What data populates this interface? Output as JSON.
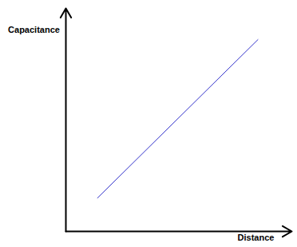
{
  "chart_data": {
    "type": "line",
    "x_label": "Distance",
    "y_label": "Capacitance",
    "x": [
      1.4,
      8.5
    ],
    "values": [
      1.5,
      8.6
    ],
    "color": "#3333cc",
    "xlim": [
      0,
      10
    ],
    "ylim": [
      0,
      10
    ],
    "tick_labels": false
  }
}
